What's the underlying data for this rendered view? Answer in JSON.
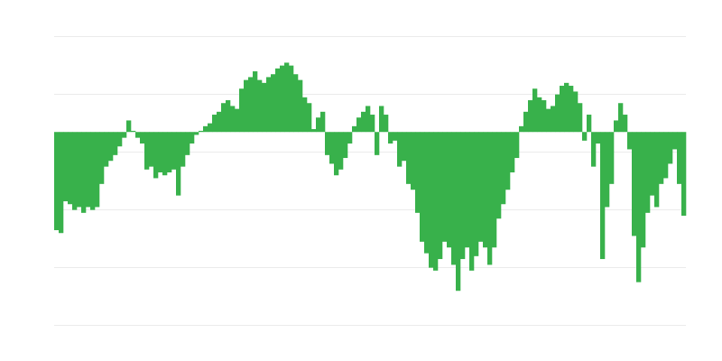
{
  "chart_data": {
    "type": "bar",
    "title": "",
    "xlabel": "",
    "ylabel": "",
    "ylim": [
      -3.34,
      1.66
    ],
    "grid": true,
    "grid_step": 1,
    "legend": "none",
    "bar_color": "#38b14b",
    "grid_color": "#ebebeb",
    "values": [
      -1.7,
      -1.75,
      -1.2,
      -1.25,
      -1.35,
      -1.3,
      -1.4,
      -1.3,
      -1.35,
      -1.3,
      -0.9,
      -0.6,
      -0.5,
      -0.4,
      -0.25,
      -0.1,
      0.2,
      0.02,
      -0.1,
      -0.2,
      -0.65,
      -0.6,
      -0.8,
      -0.7,
      -0.75,
      -0.7,
      -0.65,
      -1.1,
      -0.6,
      -0.4,
      -0.2,
      -0.05,
      0.02,
      0.1,
      0.15,
      0.3,
      0.35,
      0.5,
      0.55,
      0.45,
      0.4,
      0.75,
      0.9,
      0.95,
      1.05,
      0.9,
      0.85,
      0.95,
      1.0,
      1.1,
      1.15,
      1.2,
      1.15,
      1.0,
      0.9,
      0.6,
      0.5,
      0.05,
      0.25,
      0.35,
      -0.4,
      -0.55,
      -0.75,
      -0.65,
      -0.45,
      -0.2,
      0.1,
      0.25,
      0.35,
      0.45,
      0.3,
      -0.4,
      0.45,
      0.3,
      -0.2,
      -0.15,
      -0.6,
      -0.5,
      -0.9,
      -1.0,
      -1.4,
      -1.9,
      -2.1,
      -2.35,
      -2.4,
      -2.2,
      -1.9,
      -2.0,
      -2.3,
      -2.75,
      -2.2,
      -2.0,
      -2.4,
      -2.15,
      -1.9,
      -2.0,
      -2.3,
      -2.0,
      -1.5,
      -1.25,
      -1.0,
      -0.7,
      -0.45,
      0.1,
      0.35,
      0.55,
      0.75,
      0.6,
      0.55,
      0.4,
      0.45,
      0.65,
      0.8,
      0.85,
      0.8,
      0.7,
      0.5,
      -0.15,
      0.3,
      -0.6,
      -0.2,
      -2.2,
      -1.3,
      -0.9,
      0.2,
      0.5,
      0.3,
      -0.3,
      -1.8,
      -2.6,
      -2.0,
      -1.4,
      -1.1,
      -1.3,
      -0.9,
      -0.8,
      -0.55,
      -0.3,
      -0.9,
      -1.45
    ]
  }
}
